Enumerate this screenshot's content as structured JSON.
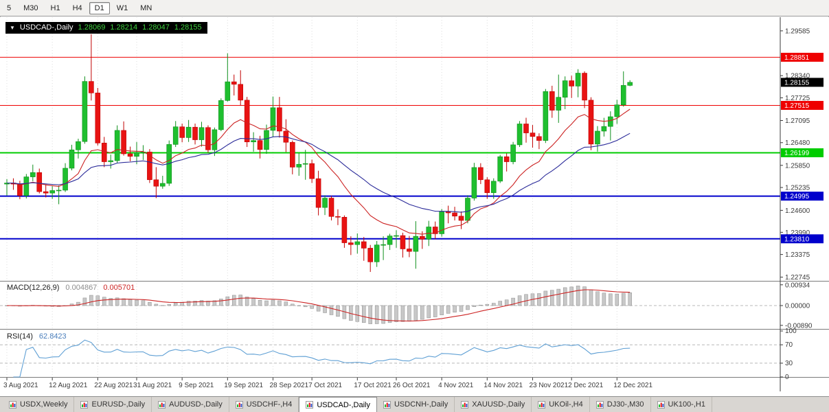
{
  "toolbar": {
    "timeframes": [
      {
        "label": "5",
        "active": false
      },
      {
        "label": "M30",
        "active": false
      },
      {
        "label": "H1",
        "active": false
      },
      {
        "label": "H4",
        "active": false
      },
      {
        "label": "D1",
        "active": true
      },
      {
        "label": "W1",
        "active": false
      },
      {
        "label": "MN",
        "active": false
      }
    ]
  },
  "ohlc_box": {
    "symbol": "USDCAD-,Daily",
    "open": "1.28069",
    "high": "1.28214",
    "low": "1.28047",
    "close": "1.28155"
  },
  "indicators": {
    "macd_label": "MACD(12,26,9)",
    "macd_value": "0.004867",
    "macd_signal_value": "0.005701",
    "rsi_label": "RSI(14)",
    "rsi_value": "62.8423"
  },
  "tabs": {
    "items": [
      {
        "label": "USDX,Weekly",
        "active": false
      },
      {
        "label": "EURUSD-,Daily",
        "active": false
      },
      {
        "label": "AUDUSD-,Daily",
        "active": false
      },
      {
        "label": "USDCHF-,H4",
        "active": false
      },
      {
        "label": "USDCAD-,Daily",
        "active": true
      },
      {
        "label": "USDCNH-,Daily",
        "active": false
      },
      {
        "label": "XAUUSD-,Daily",
        "active": false
      },
      {
        "label": "UKOil-,H4",
        "active": false
      },
      {
        "label": "DJ30-,M30",
        "active": false
      },
      {
        "label": "UK100-,H1",
        "active": false
      }
    ]
  },
  "chart_data": {
    "type": "candlestick",
    "title": "USDCAD-,Daily",
    "x_labels": [
      {
        "i": 0,
        "label": "3 Aug 2021"
      },
      {
        "i": 7,
        "label": "12 Aug 2021"
      },
      {
        "i": 14,
        "label": "22 Aug 2021"
      },
      {
        "i": 20,
        "label": "31 Aug 2021"
      },
      {
        "i": 27,
        "label": "9 Sep 2021"
      },
      {
        "i": 34,
        "label": "19 Sep 2021"
      },
      {
        "i": 41,
        "label": "28 Sep 2021"
      },
      {
        "i": 47,
        "label": "7 Oct 2021"
      },
      {
        "i": 54,
        "label": "17 Oct 2021"
      },
      {
        "i": 60,
        "label": "26 Oct 2021"
      },
      {
        "i": 67,
        "label": "4 Nov 2021"
      },
      {
        "i": 74,
        "label": "14 Nov 2021"
      },
      {
        "i": 81,
        "label": "23 Nov 2021"
      },
      {
        "i": 87,
        "label": "2 Dec 2021"
      },
      {
        "i": 94,
        "label": "12 Dec 2021"
      }
    ],
    "candles": [
      [
        1.2533,
        1.2547,
        1.2501,
        1.2536
      ],
      [
        1.2536,
        1.2549,
        1.2517,
        1.2533
      ],
      [
        1.2533,
        1.2542,
        1.2491,
        1.2501
      ],
      [
        1.2501,
        1.2561,
        1.2493,
        1.2553
      ],
      [
        1.2553,
        1.2587,
        1.2541,
        1.2565
      ],
      [
        1.2565,
        1.2576,
        1.2507,
        1.2512
      ],
      [
        1.2512,
        1.2532,
        1.2496,
        1.2508
      ],
      [
        1.2508,
        1.2527,
        1.2492,
        1.2515
      ],
      [
        1.2515,
        1.2529,
        1.2477,
        1.2516
      ],
      [
        1.2516,
        1.2591,
        1.2511,
        1.2577
      ],
      [
        1.2577,
        1.2642,
        1.2571,
        1.2628
      ],
      [
        1.2628,
        1.2659,
        1.2604,
        1.2651
      ],
      [
        1.2651,
        1.2832,
        1.2645,
        1.2818
      ],
      [
        1.2818,
        1.2949,
        1.2765,
        1.2786
      ],
      [
        1.2786,
        1.28,
        1.264,
        1.2647
      ],
      [
        1.2647,
        1.2664,
        1.258,
        1.2595
      ],
      [
        1.2595,
        1.2615,
        1.2576,
        1.2598
      ],
      [
        1.2598,
        1.2696,
        1.2592,
        1.2682
      ],
      [
        1.2682,
        1.2707,
        1.2612,
        1.2617
      ],
      [
        1.2617,
        1.2637,
        1.2596,
        1.261
      ],
      [
        1.261,
        1.265,
        1.2588,
        1.262
      ],
      [
        1.262,
        1.2641,
        1.26,
        1.2622
      ],
      [
        1.2622,
        1.263,
        1.2536,
        1.2545
      ],
      [
        1.2545,
        1.258,
        1.2494,
        1.2527
      ],
      [
        1.2527,
        1.2556,
        1.252,
        1.2535
      ],
      [
        1.2535,
        1.2654,
        1.2528,
        1.2643
      ],
      [
        1.2643,
        1.2708,
        1.2636,
        1.2692
      ],
      [
        1.2692,
        1.2701,
        1.2649,
        1.2662
      ],
      [
        1.2662,
        1.2711,
        1.265,
        1.2691
      ],
      [
        1.2691,
        1.2701,
        1.2643,
        1.2656
      ],
      [
        1.2656,
        1.2706,
        1.2637,
        1.269
      ],
      [
        1.269,
        1.2696,
        1.262,
        1.2628
      ],
      [
        1.2628,
        1.269,
        1.2611,
        1.2684
      ],
      [
        1.2684,
        1.2771,
        1.268,
        1.2765
      ],
      [
        1.2765,
        1.2896,
        1.2762,
        1.2817
      ],
      [
        1.2817,
        1.2837,
        1.2779,
        1.281
      ],
      [
        1.281,
        1.2849,
        1.2751,
        1.2766
      ],
      [
        1.2766,
        1.2775,
        1.2636,
        1.265
      ],
      [
        1.265,
        1.2677,
        1.2623,
        1.2654
      ],
      [
        1.2654,
        1.2667,
        1.2604,
        1.2629
      ],
      [
        1.2629,
        1.2698,
        1.2617,
        1.2682
      ],
      [
        1.2682,
        1.2776,
        1.2663,
        1.2745
      ],
      [
        1.2745,
        1.2775,
        1.2662,
        1.268
      ],
      [
        1.268,
        1.2713,
        1.2622,
        1.2649
      ],
      [
        1.2649,
        1.2654,
        1.256,
        1.258
      ],
      [
        1.258,
        1.2619,
        1.2556,
        1.2588
      ],
      [
        1.2588,
        1.2628,
        1.2545,
        1.259
      ],
      [
        1.259,
        1.2601,
        1.2536,
        1.2548
      ],
      [
        1.2548,
        1.257,
        1.2446,
        1.2468
      ],
      [
        1.2468,
        1.2502,
        1.2447,
        1.2494
      ],
      [
        1.2494,
        1.25,
        1.2432,
        1.2443
      ],
      [
        1.2443,
        1.2463,
        1.2419,
        1.2441
      ],
      [
        1.2441,
        1.2446,
        1.2356,
        1.237
      ],
      [
        1.237,
        1.2388,
        1.2336,
        1.2365
      ],
      [
        1.2365,
        1.2396,
        1.234,
        1.2373
      ],
      [
        1.2373,
        1.2386,
        1.232,
        1.2355
      ],
      [
        1.2355,
        1.2364,
        1.2289,
        1.2317
      ],
      [
        1.2317,
        1.2375,
        1.2303,
        1.2364
      ],
      [
        1.2364,
        1.2388,
        1.2322,
        1.2365
      ],
      [
        1.2365,
        1.2395,
        1.235,
        1.2389
      ],
      [
        1.2389,
        1.2405,
        1.2356,
        1.239
      ],
      [
        1.239,
        1.2398,
        1.2329,
        1.2353
      ],
      [
        1.2353,
        1.2389,
        1.233,
        1.2346
      ],
      [
        1.2346,
        1.243,
        1.2298,
        1.2388
      ],
      [
        1.2388,
        1.2402,
        1.2353,
        1.238
      ],
      [
        1.238,
        1.2431,
        1.2361,
        1.2414
      ],
      [
        1.2414,
        1.2429,
        1.238,
        1.2395
      ],
      [
        1.2395,
        1.2464,
        1.2387,
        1.2456
      ],
      [
        1.2456,
        1.2473,
        1.2424,
        1.2453
      ],
      [
        1.2453,
        1.247,
        1.2432,
        1.2444
      ],
      [
        1.2444,
        1.2457,
        1.2408,
        1.2432
      ],
      [
        1.2432,
        1.2502,
        1.2424,
        1.2494
      ],
      [
        1.2494,
        1.2592,
        1.2487,
        1.2579
      ],
      [
        1.2579,
        1.2591,
        1.2533,
        1.2545
      ],
      [
        1.2545,
        1.2552,
        1.2492,
        1.2509
      ],
      [
        1.2509,
        1.2549,
        1.2492,
        1.2541
      ],
      [
        1.2541,
        1.2614,
        1.2536,
        1.2609
      ],
      [
        1.2609,
        1.2618,
        1.2568,
        1.2595
      ],
      [
        1.2595,
        1.265,
        1.2588,
        1.2642
      ],
      [
        1.2642,
        1.2708,
        1.2636,
        1.27
      ],
      [
        1.27,
        1.2717,
        1.2648,
        1.2675
      ],
      [
        1.2675,
        1.2697,
        1.2634,
        1.2665
      ],
      [
        1.2665,
        1.2674,
        1.263,
        1.2654
      ],
      [
        1.2654,
        1.2797,
        1.2647,
        1.279
      ],
      [
        1.279,
        1.2806,
        1.2717,
        1.2738
      ],
      [
        1.2738,
        1.2837,
        1.2703,
        1.2774
      ],
      [
        1.2774,
        1.2832,
        1.2741,
        1.282
      ],
      [
        1.282,
        1.2834,
        1.2772,
        1.2805
      ],
      [
        1.2805,
        1.2852,
        1.2774,
        1.2841
      ],
      [
        1.2841,
        1.2846,
        1.2744,
        1.2766
      ],
      [
        1.2766,
        1.2774,
        1.2627,
        1.2644
      ],
      [
        1.2644,
        1.2694,
        1.2623,
        1.268
      ],
      [
        1.268,
        1.2717,
        1.2665,
        1.2693
      ],
      [
        1.2693,
        1.2735,
        1.2654,
        1.272
      ],
      [
        1.272,
        1.2767,
        1.27,
        1.2753
      ],
      [
        1.2753,
        1.2846,
        1.2748,
        1.2807
      ],
      [
        1.28069,
        1.28214,
        1.28047,
        1.28155
      ]
    ],
    "y_axis": {
      "min": 1.227,
      "max": 1.2985,
      "ticks": [
        "1.29585",
        "1.28340",
        "1.27725",
        "1.27095",
        "1.26480",
        "1.25850",
        "1.25235",
        "1.24600",
        "1.23990",
        "1.23375",
        "1.22745"
      ]
    },
    "h_lines": [
      {
        "price": 1.28851,
        "label": "1.28851",
        "color": "#ee0000",
        "width": 1
      },
      {
        "price": 1.27515,
        "label": "1.27515",
        "color": "#ee0000",
        "width": 1
      },
      {
        "price": 1.26199,
        "label": "1.26199",
        "color": "#00cc00",
        "width": 2
      },
      {
        "price": 1.24995,
        "label": "1.24995",
        "color": "#0000cc",
        "width": 2
      },
      {
        "price": 1.2381,
        "label": "1.23810",
        "color": "#0000cc",
        "width": 2
      }
    ],
    "current_price": {
      "value": 1.28155,
      "label": "1.28155",
      "badge_color": "#000000"
    },
    "candle_colors": {
      "up": "#1fbf2f",
      "down": "#e81313",
      "up_wick": "#0f8f1c",
      "down_wick": "#c00000"
    },
    "overlays": [
      {
        "name": "ma-fast",
        "type": "ema",
        "period": 13,
        "color": "#cc2222"
      },
      {
        "name": "ma-slow",
        "type": "ema",
        "period": 30,
        "color": "#2a2a99"
      }
    ],
    "macd": {
      "fast": 12,
      "slow": 26,
      "signal": 9,
      "hist_fill": "#c8c8c8",
      "hist_stroke": "#8c8c8c",
      "signal_color": "#cc2222",
      "range": [
        -0.0105,
        0.0105
      ],
      "ticks": [
        {
          "v": 0.00934,
          "label": "0.00934"
        },
        {
          "v": 0,
          "label": "0.00000"
        },
        {
          "v": -0.0089,
          "label": "-0.00890"
        }
      ]
    },
    "rsi": {
      "period": 14,
      "color": "#5e9fd4",
      "levels": [
        70,
        30
      ],
      "range": [
        0,
        100
      ],
      "ticks": [
        {
          "v": 100,
          "label": "100"
        },
        {
          "v": 70,
          "label": "70"
        },
        {
          "v": 30,
          "label": "30"
        },
        {
          "v": 0,
          "label": "0"
        }
      ]
    }
  }
}
